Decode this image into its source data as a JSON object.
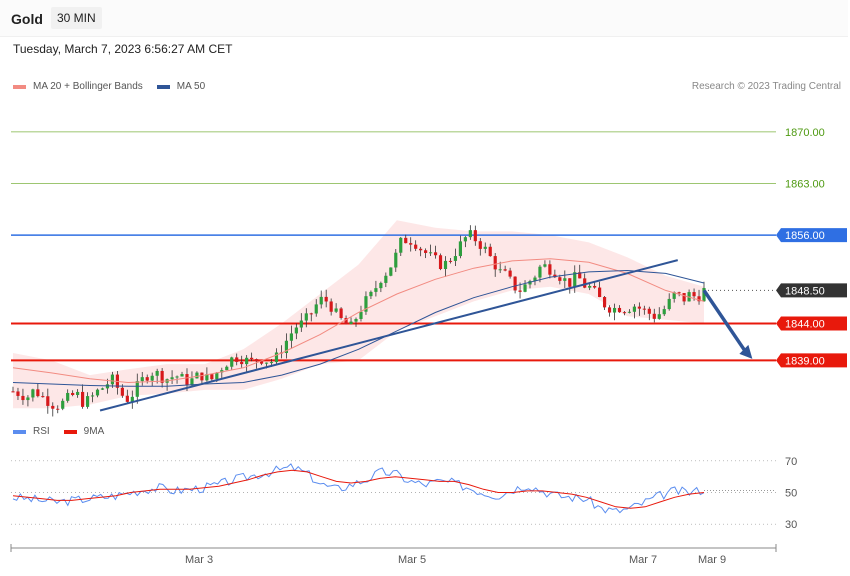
{
  "header": {
    "instrument": "Gold",
    "timeframe": "30 MIN",
    "timestamp": "Tuesday, March 7, 2023 6:56:27 AM CET",
    "credit": "Research © 2023 Trading Central"
  },
  "legend_top": [
    {
      "label": "MA 20 + Bollinger Bands",
      "color": "#f28b82"
    },
    {
      "label": "MA 50",
      "color": "#2f5597"
    }
  ],
  "legend_bottom": [
    {
      "label": "RSI",
      "color": "#5b8def"
    },
    {
      "label": "9MA",
      "color": "#e8190c"
    }
  ],
  "colors": {
    "bull": "#2e9e3e",
    "bear": "#d7191c",
    "target_green": "#7cb342",
    "pivot_blue": "#2f6fe3",
    "support_red": "#e8190c",
    "trend": "#2f5597",
    "bands": "#fde3e3"
  },
  "chart_data": [
    {
      "type": "candlestick",
      "instrument": "Gold",
      "timeframe": "30 MIN",
      "ylim": [
        1832,
        1875
      ],
      "x_labels": [
        "Mar 3",
        "Mar 5",
        "Mar 7",
        "Mar 9"
      ],
      "levels": [
        {
          "value": 1870.0,
          "label": "1870.00",
          "role": "target"
        },
        {
          "value": 1863.0,
          "label": "1863.00",
          "role": "target"
        },
        {
          "value": 1856.0,
          "label": "1856.00",
          "role": "pivot"
        },
        {
          "value": 1848.5,
          "label": "1848.50",
          "role": "last"
        },
        {
          "value": 1844.0,
          "label": "1844.00",
          "role": "support"
        },
        {
          "value": 1839.0,
          "label": "1839.00",
          "role": "support"
        }
      ],
      "close_path": [
        1834.8,
        1834.5,
        1834.0,
        1835.0,
        1834.2,
        1833.5,
        1832.8,
        1833.2,
        1834.0,
        1834.5,
        1833.2,
        1833.8,
        1834.8,
        1835.5,
        1836.5,
        1835.0,
        1833.6,
        1834.5,
        1836.0,
        1837.0,
        1837.5,
        1836.8,
        1836.5,
        1837.0,
        1836.5,
        1836.0,
        1836.8,
        1837.0,
        1836.2,
        1837.5,
        1838.5,
        1839.2,
        1839.5,
        1839.0,
        1838.8,
        1839.3,
        1839.0,
        1838.8,
        1840.5,
        1842.0,
        1843.5,
        1844.0,
        1845.0,
        1846.5,
        1847.5,
        1846.5,
        1845.0,
        1844.0,
        1843.5,
        1845.5,
        1847.0,
        1848.0,
        1850.0,
        1851.0,
        1852.5,
        1855.0,
        1855.5,
        1855.0,
        1854.0,
        1853.2,
        1852.5,
        1851.8,
        1852.8,
        1854.0,
        1855.5,
        1856.0,
        1855.0,
        1854.0,
        1852.5,
        1851.0,
        1850.5,
        1849.0,
        1848.5,
        1849.5,
        1850.5,
        1852.0,
        1851.5,
        1851.0,
        1850.0,
        1849.5,
        1850.5,
        1849.2,
        1848.8,
        1847.5,
        1846.5,
        1846.0,
        1846.2,
        1846.0,
        1846.5,
        1846.0,
        1845.5,
        1845.0,
        1845.5,
        1846.8,
        1848.2,
        1847.2,
        1848.0,
        1847.5,
        1848.5
      ],
      "ma20": [
        1838.0,
        1837.3,
        1836.5,
        1836.0,
        1836.2,
        1837.0,
        1838.0,
        1840.0,
        1842.5,
        1845.5,
        1848.0,
        1850.0,
        1851.5,
        1852.5,
        1852.8,
        1852.3,
        1850.8,
        1848.5,
        1847.0
      ],
      "ma50": [
        1836.0,
        1835.8,
        1835.6,
        1835.5,
        1835.5,
        1835.8,
        1836.0,
        1837.0,
        1838.5,
        1840.5,
        1843.0,
        1845.5,
        1847.5,
        1849.0,
        1850.3,
        1851.0,
        1851.2,
        1850.8,
        1849.5
      ],
      "band_upper": [
        1840.0,
        1839.0,
        1837.0,
        1837.8,
        1838.5,
        1838.5,
        1840.5,
        1844.0,
        1848.0,
        1852.0,
        1858.0,
        1857.0,
        1856.5,
        1856.5,
        1856.0,
        1855.0,
        1853.0,
        1850.5,
        1849.0
      ],
      "band_lower": [
        1832.5,
        1832.5,
        1833.0,
        1834.2,
        1834.5,
        1835.0,
        1835.0,
        1836.5,
        1838.5,
        1839.0,
        1843.0,
        1845.0,
        1847.0,
        1848.5,
        1849.0,
        1848.0,
        1845.0,
        1844.5,
        1844.0
      ],
      "trendline": [
        {
          "x": 0.126,
          "y": 1832.2
        },
        {
          "x": 0.962,
          "y": 1852.6
        }
      ],
      "projection": [
        {
          "x": 1.0,
          "y": 1848.5
        },
        {
          "x": 1.07,
          "y": 1839.2
        }
      ]
    },
    {
      "type": "line",
      "series": [
        {
          "name": "RSI",
          "values": [
            47,
            46,
            45,
            44,
            45,
            46,
            47,
            48,
            50,
            52,
            53,
            51,
            52,
            53,
            55,
            58,
            60,
            62,
            64,
            66,
            62,
            55,
            52,
            55,
            58,
            63,
            62,
            57,
            55,
            57,
            56,
            53,
            50,
            48,
            52,
            55,
            51,
            48,
            47,
            46,
            40,
            38,
            40,
            44,
            48,
            51,
            50,
            52
          ]
        },
        {
          "name": "9MA",
          "values": [
            48,
            47,
            46,
            45,
            45,
            46,
            47,
            48,
            50,
            51,
            52,
            52,
            52,
            53,
            54,
            56,
            58,
            61,
            63,
            64,
            63,
            60,
            57,
            56,
            57,
            59,
            60,
            59,
            58,
            57,
            57,
            55,
            52,
            50,
            50,
            51,
            51,
            50,
            49,
            47,
            44,
            41,
            40,
            41,
            44,
            47,
            49,
            50
          ]
        }
      ],
      "ylim": [
        20,
        80
      ],
      "yticks": [
        30,
        50,
        70
      ]
    }
  ]
}
